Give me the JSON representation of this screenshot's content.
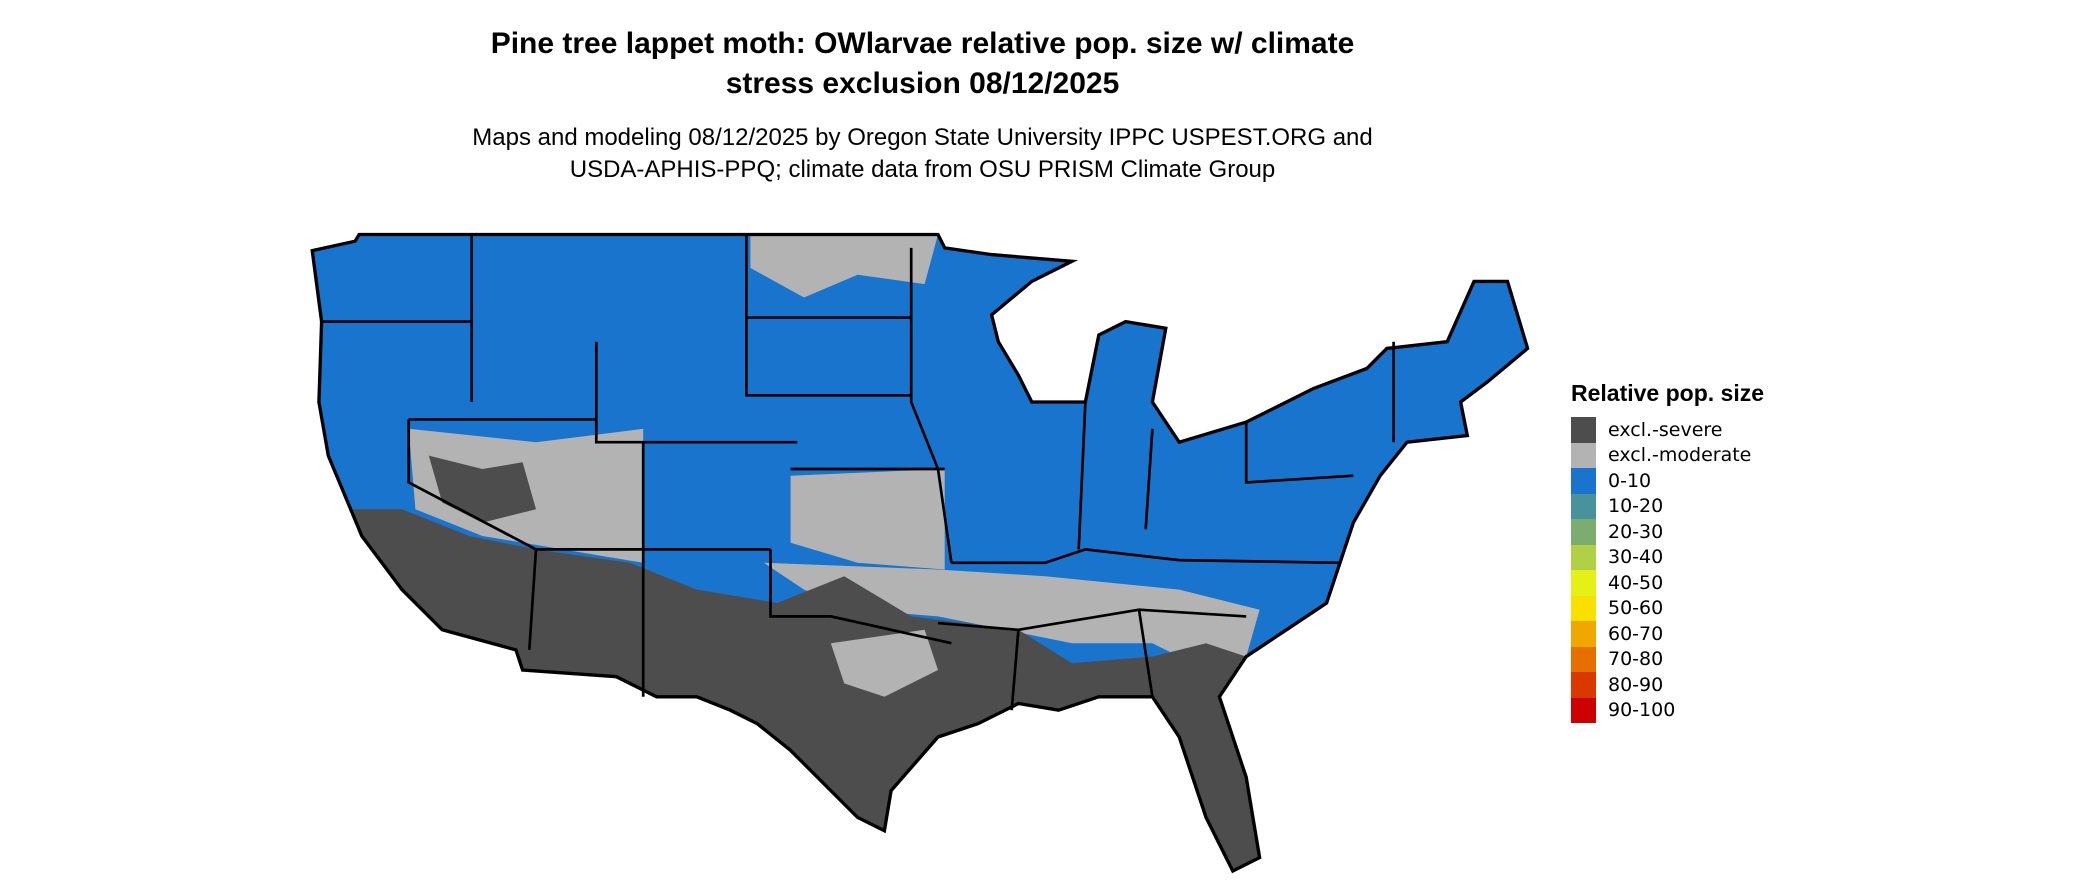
{
  "title": "Pine tree lappet moth: OWlarvae relative pop. size w/ climate stress exclusion 08/12/2025",
  "title_lines": [
    "Pine tree lappet moth: OWlarvae relative pop. size w/ climate",
    "stress exclusion 08/12/2025"
  ],
  "subtitle_lines": [
    "Maps and modeling 08/12/2025 by Oregon State University IPPC USPEST.ORG and",
    "USDA-APHIS-PPQ; climate data from OSU PRISM Climate Group"
  ],
  "map": {
    "region": "Contiguous United States",
    "border_color": "#000000",
    "summary": {
      "north_and_east": "0-10",
      "desert_southwest_texas_gulf_florida": "excl.-severe",
      "southern_plains_southeast_patches": "excl.-moderate"
    }
  },
  "legend": {
    "title": "Relative pop. size",
    "items": [
      {
        "label": "excl.-severe",
        "color": "#4d4d4d"
      },
      {
        "label": "excl.-moderate",
        "color": "#b3b3b3"
      },
      {
        "label": "0-10",
        "color": "#1874cd"
      },
      {
        "label": "10-20",
        "color": "#48929b"
      },
      {
        "label": "20-30",
        "color": "#7bad70"
      },
      {
        "label": "30-40",
        "color": "#b2d045"
      },
      {
        "label": "40-50",
        "color": "#e5f016"
      },
      {
        "label": "50-60",
        "color": "#f8e000"
      },
      {
        "label": "60-70",
        "color": "#f0a800"
      },
      {
        "label": "70-80",
        "color": "#e57000"
      },
      {
        "label": "80-90",
        "color": "#db3800"
      },
      {
        "label": "90-100",
        "color": "#cc0000"
      }
    ]
  }
}
